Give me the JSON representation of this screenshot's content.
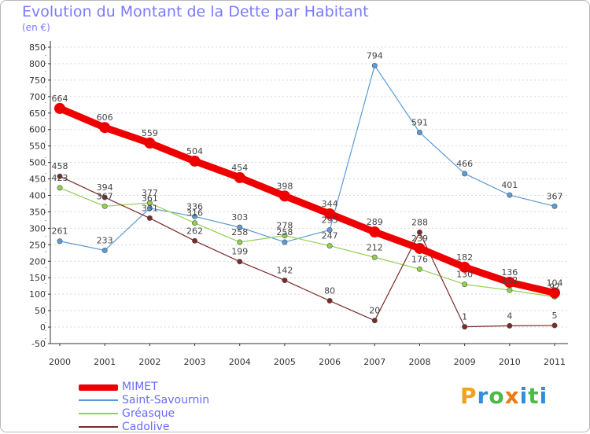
{
  "header": {
    "title": "Evolution du Montant de la Dette par Habitant",
    "subtitle": "(en €)"
  },
  "logo": {
    "text": "Proxiti",
    "letters": [
      "P",
      "r",
      "o",
      "x",
      "i",
      "t",
      "i"
    ],
    "colors": [
      "#f0a21c",
      "#2f8ee0",
      "#4cb848",
      "#ee7a14",
      "#2f8ee0",
      "#4cb848",
      "#2f8ee0"
    ]
  },
  "chart_data": {
    "type": "line",
    "title": "Evolution du Montant de la Dette par Habitant",
    "ylabel": "(en €)",
    "categories": [
      "2000",
      "2001",
      "2002",
      "2003",
      "2004",
      "2005",
      "2006",
      "2007",
      "2008",
      "2009",
      "2010",
      "2011"
    ],
    "ylim": [
      -50,
      850
    ],
    "yticks": [
      -50,
      0,
      50,
      100,
      150,
      200,
      250,
      300,
      350,
      400,
      450,
      500,
      550,
      600,
      650,
      700,
      750,
      800,
      850
    ],
    "grid": "horizontal-dashed",
    "legend": "bottom-left",
    "series": [
      {
        "name": "MIMET",
        "color": "#ee0000",
        "values": [
          664,
          606,
          559,
          504,
          454,
          398,
          344,
          289,
          239,
          182,
          136,
          104
        ],
        "labels": [
          "664",
          "606",
          "559",
          "504",
          "454",
          "398",
          "344",
          "289",
          "239",
          "182",
          "136",
          "104"
        ]
      },
      {
        "name": "Saint-Savournin",
        "color": "#5b9bd5",
        "values": [
          261,
          233,
          361,
          336,
          303,
          258,
          295,
          794,
          591,
          466,
          401,
          367
        ],
        "labels": [
          "261",
          "233",
          "361",
          "336",
          "303",
          "258",
          "295",
          "794",
          "591",
          "466",
          "401",
          "367"
        ]
      },
      {
        "name": "Gréasque",
        "color": "#92d050",
        "values": [
          423,
          367,
          377,
          316,
          258,
          278,
          247,
          212,
          176,
          130,
          112,
          92
        ],
        "labels": [
          "423",
          "367",
          "377",
          "316",
          "258",
          "278",
          "247",
          "212",
          "176",
          "130",
          "112",
          "92"
        ]
      },
      {
        "name": "Cadolive",
        "color": "#7b2a2a",
        "values": [
          458,
          394,
          331,
          262,
          199,
          142,
          80,
          20,
          288,
          1,
          4,
          5
        ],
        "labels": [
          "458",
          "394",
          "331",
          "262",
          "199",
          "142",
          "80",
          "20",
          "288",
          "1",
          "4",
          "5"
        ]
      }
    ]
  }
}
